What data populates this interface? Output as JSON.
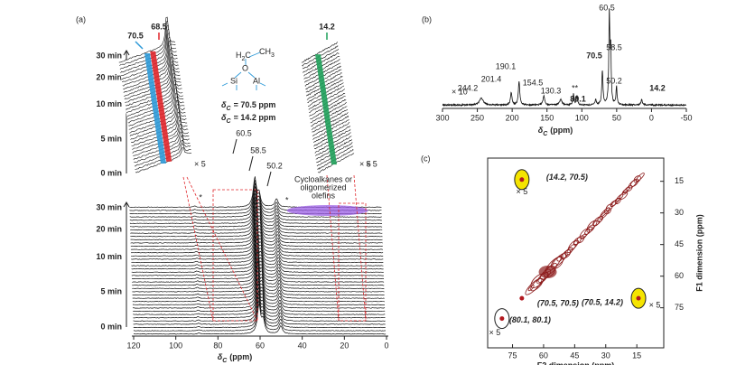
{
  "panel_a": {
    "label": "(a)",
    "times": [
      "30 min",
      "20 min",
      "10 min",
      "5 min",
      "0 min"
    ],
    "xlim": [
      120,
      0
    ],
    "xticks": [
      120,
      100,
      80,
      60,
      40,
      20,
      0
    ],
    "xlabel": {
      "symbol": "δ",
      "sub": "C",
      "unit": "(ppm)"
    },
    "peaks": [
      60.5,
      58.5,
      50.2
    ],
    "inset_peaks": [
      {
        "value": 70.5,
        "color": "#2e9ad8"
      },
      {
        "value": 68.5,
        "color": "#e0262b"
      },
      {
        "value": 14.2,
        "color": "#1fa05a"
      }
    ],
    "scale": "× 5",
    "impurity": "*",
    "annotation": [
      "Cycloalkanes or",
      "oligomerized",
      "olefins"
    ],
    "structure": {
      "h2c": [
        "H",
        "2",
        "C"
      ],
      "ch3": [
        "CH",
        "3"
      ],
      "o": "O",
      "si": "Si",
      "al": "Al"
    },
    "shifts": [
      {
        "symbol": "δ",
        "sub": "C",
        "text": "= 70.5 ppm",
        "color": "#2e9ad8"
      },
      {
        "symbol": "δ",
        "sub": "C",
        "text": "= 14.2 ppm",
        "color": "#1fa05a"
      }
    ]
  },
  "panel_b": {
    "label": "(b)",
    "xlim": [
      300,
      -50
    ],
    "xticks": [
      300,
      250,
      200,
      150,
      100,
      50,
      0,
      -50
    ],
    "xlabel": {
      "symbol": "δ",
      "sub": "C",
      "unit": "(ppm)"
    },
    "scale": "× 10",
    "stars": "**",
    "peaks": [
      {
        "value": 244.2,
        "color": "#222222"
      },
      {
        "value": 201.4,
        "color": "#222222"
      },
      {
        "value": 190.1,
        "color": "#222222"
      },
      {
        "value": 154.5,
        "color": "#222222"
      },
      {
        "value": 130.3,
        "color": "#222222"
      },
      {
        "value": 80.1,
        "color": "#c020c0"
      },
      {
        "value": 70.5,
        "color": "#2e9ad8"
      },
      {
        "value": 60.5,
        "color": "#222222"
      },
      {
        "value": 58.5,
        "color": "#222222"
      },
      {
        "value": 50.2,
        "color": "#222222"
      },
      {
        "value": 14.2,
        "color": "#1fa05a"
      }
    ]
  },
  "panel_c": {
    "label": "(c)",
    "xlim": [
      87,
      2
    ],
    "ylim": [
      4,
      94
    ],
    "xticks": [
      75,
      60,
      45,
      30,
      15
    ],
    "yticks": [
      15,
      30,
      45,
      60,
      75
    ],
    "xlabel": "F2 dimension (ppm)",
    "ylabel": "F1 dimension (ppm)",
    "cross_peaks": [
      {
        "label": "(14.2, 70.5)",
        "f1": 14.2,
        "f2": 70.5,
        "color": "#2e9ad8",
        "scale": "× 5"
      },
      {
        "label": "(70.5, 70.5)",
        "f1": 70.5,
        "f2": 70.5,
        "color": "#2e9ad8"
      },
      {
        "label": "(70.5, 14.2)",
        "f1": 70.5,
        "f2": 14.2,
        "color": "#2e9ad8",
        "scale": "× 5"
      },
      {
        "label": "(80.1, 80.1)",
        "f1": 80.1,
        "f2": 80.1,
        "color": "#c020c0",
        "scale": "× 5"
      }
    ]
  }
}
